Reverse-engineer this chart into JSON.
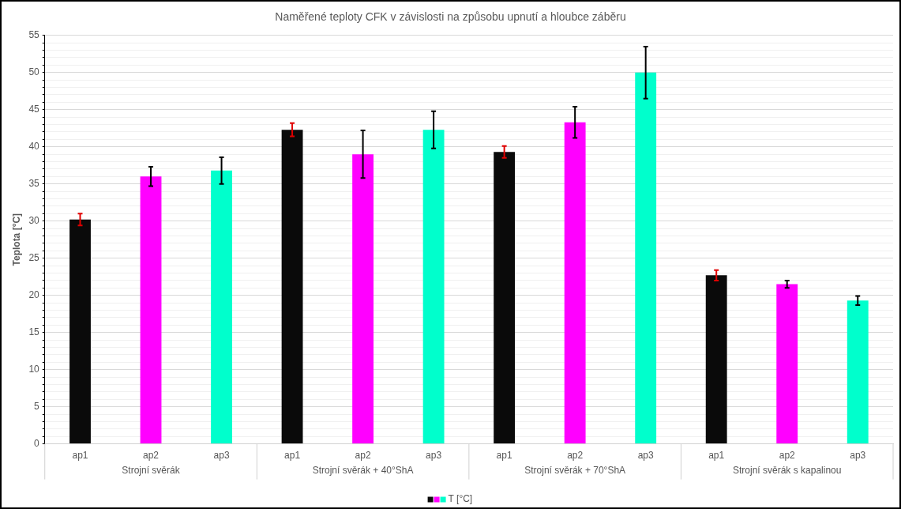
{
  "chart_data": {
    "type": "bar",
    "title": "Naměřené teploty CFK v závislosti na způsobu upnutí a hloubce záběru",
    "ylabel": "Teplota [°C]",
    "categories": [
      "ap1",
      "ap2",
      "ap3",
      "ap1",
      "ap2",
      "ap3",
      "ap1",
      "ap2",
      "ap3",
      "ap1",
      "ap2",
      "ap3"
    ],
    "series": [
      {
        "name": "T [°C]",
        "values": [
          30.2,
          36.0,
          36.8,
          42.3,
          39.0,
          42.3,
          39.3,
          43.3,
          50.0,
          22.7,
          21.5,
          19.3
        ],
        "colors": [
          "#0a0a0a",
          "#ff00ff",
          "#00ffcc",
          "#0a0a0a",
          "#ff00ff",
          "#00ffcc",
          "#0a0a0a",
          "#ff00ff",
          "#00ffcc",
          "#0a0a0a",
          "#ff00ff",
          "#00ffcc"
        ],
        "errors": [
          0.8,
          1.3,
          1.8,
          0.9,
          3.2,
          2.5,
          0.8,
          2.1,
          3.5,
          0.7,
          0.5,
          0.6
        ]
      }
    ],
    "ylim": [
      0,
      55
    ],
    "yticks": [
      0,
      {
        "value": 1,
        "label": null
      },
      {
        "value": 2,
        "label": null
      },
      {
        "value": 3,
        "label": null
      },
      {
        "value": 4,
        "label": null
      },
      5,
      {
        "value": 6,
        "label": null
      },
      {
        "value": 7,
        "label": null
      },
      {
        "value": 8,
        "label": null
      },
      {
        "value": 9,
        "label": null
      },
      10,
      {
        "value": 11,
        "label": null
      },
      {
        "value": 12,
        "label": null
      },
      {
        "value": 13,
        "label": null
      },
      {
        "value": 14,
        "label": null
      },
      15,
      {
        "value": 16,
        "label": null
      },
      {
        "value": 17,
        "label": null
      },
      {
        "value": 18,
        "label": null
      },
      {
        "value": 19,
        "label": null
      },
      20,
      {
        "value": 21,
        "label": null
      },
      {
        "value": 22,
        "label": null
      },
      {
        "value": 23,
        "label": null
      },
      {
        "value": 24,
        "label": null
      },
      25,
      {
        "value": 26,
        "label": null
      },
      {
        "value": 27,
        "label": null
      },
      {
        "value": 28,
        "label": null
      },
      {
        "value": 29,
        "label": null
      },
      30,
      {
        "value": 31,
        "label": null
      },
      {
        "value": 32,
        "label": null
      },
      {
        "value": 33,
        "label": null
      },
      {
        "value": 34,
        "label": null
      },
      35,
      {
        "value": 36,
        "label": null
      },
      {
        "value": 37,
        "label": null
      },
      {
        "value": 38,
        "label": null
      },
      {
        "value": 39,
        "label": null
      },
      40,
      {
        "value": 41,
        "label": null
      },
      {
        "value": 42,
        "label": null
      },
      {
        "value": 43,
        "label": null
      },
      {
        "value": 44,
        "label": null
      },
      45,
      {
        "value": 46,
        "label": null
      },
      {
        "value": 47,
        "label": null
      },
      {
        "value": 48,
        "label": null
      },
      {
        "value": 49,
        "label": null
      },
      50,
      {
        "value": 51,
        "label": null
      },
      {
        "value": 52,
        "label": null
      },
      {
        "value": 53,
        "label": null
      },
      {
        "value": 54,
        "label": null
      },
      55
    ],
    "grid": "y",
    "legend": "bottom",
    "annotations": [
      "Strojní svěrák",
      "Strojní svěrák + 40°ShA",
      "Strojní svěrák + 70°ShA",
      "Strojní svěrák s kapalinou"
    ]
  }
}
